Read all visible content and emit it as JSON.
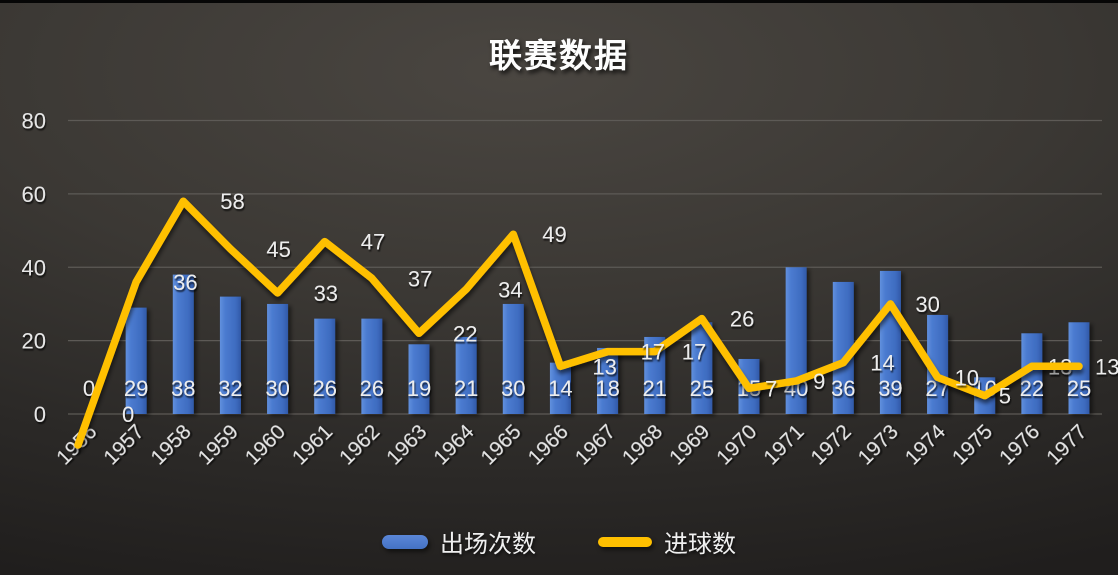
{
  "chart_data": {
    "type": "bar",
    "title": "联赛数据",
    "categories": [
      "1956",
      "1957",
      "1958",
      "1959",
      "1960",
      "1961",
      "1962",
      "1963",
      "1964",
      "1965",
      "1966",
      "1967",
      "1968",
      "1969",
      "1970",
      "1971",
      "1972",
      "1973",
      "1974",
      "1975",
      "1976",
      "1977"
    ],
    "series": [
      {
        "name": "出场次数",
        "chart_type": "bar",
        "color": "#4472c4",
        "values": [
          0,
          29,
          38,
          32,
          30,
          26,
          26,
          19,
          21,
          30,
          14,
          18,
          21,
          25,
          15,
          40,
          36,
          39,
          27,
          10,
          22,
          25
        ]
      },
      {
        "name": "进球数",
        "chart_type": "line",
        "color": "#ffc000",
        "values": [
          0,
          36,
          58,
          45,
          33,
          47,
          37,
          22,
          34,
          49,
          13,
          17,
          17,
          26,
          7,
          9,
          14,
          30,
          10,
          5,
          13,
          13
        ]
      }
    ],
    "xlabel": "",
    "ylabel": "",
    "yticks": [
      0,
      20,
      40,
      60,
      80
    ],
    "ylim": [
      0,
      80
    ],
    "grid": true,
    "legend_position": "bottom",
    "data_labels": true,
    "label_color": "#ededed",
    "grid_color": "#5d5a56",
    "background_theme": "dark"
  }
}
